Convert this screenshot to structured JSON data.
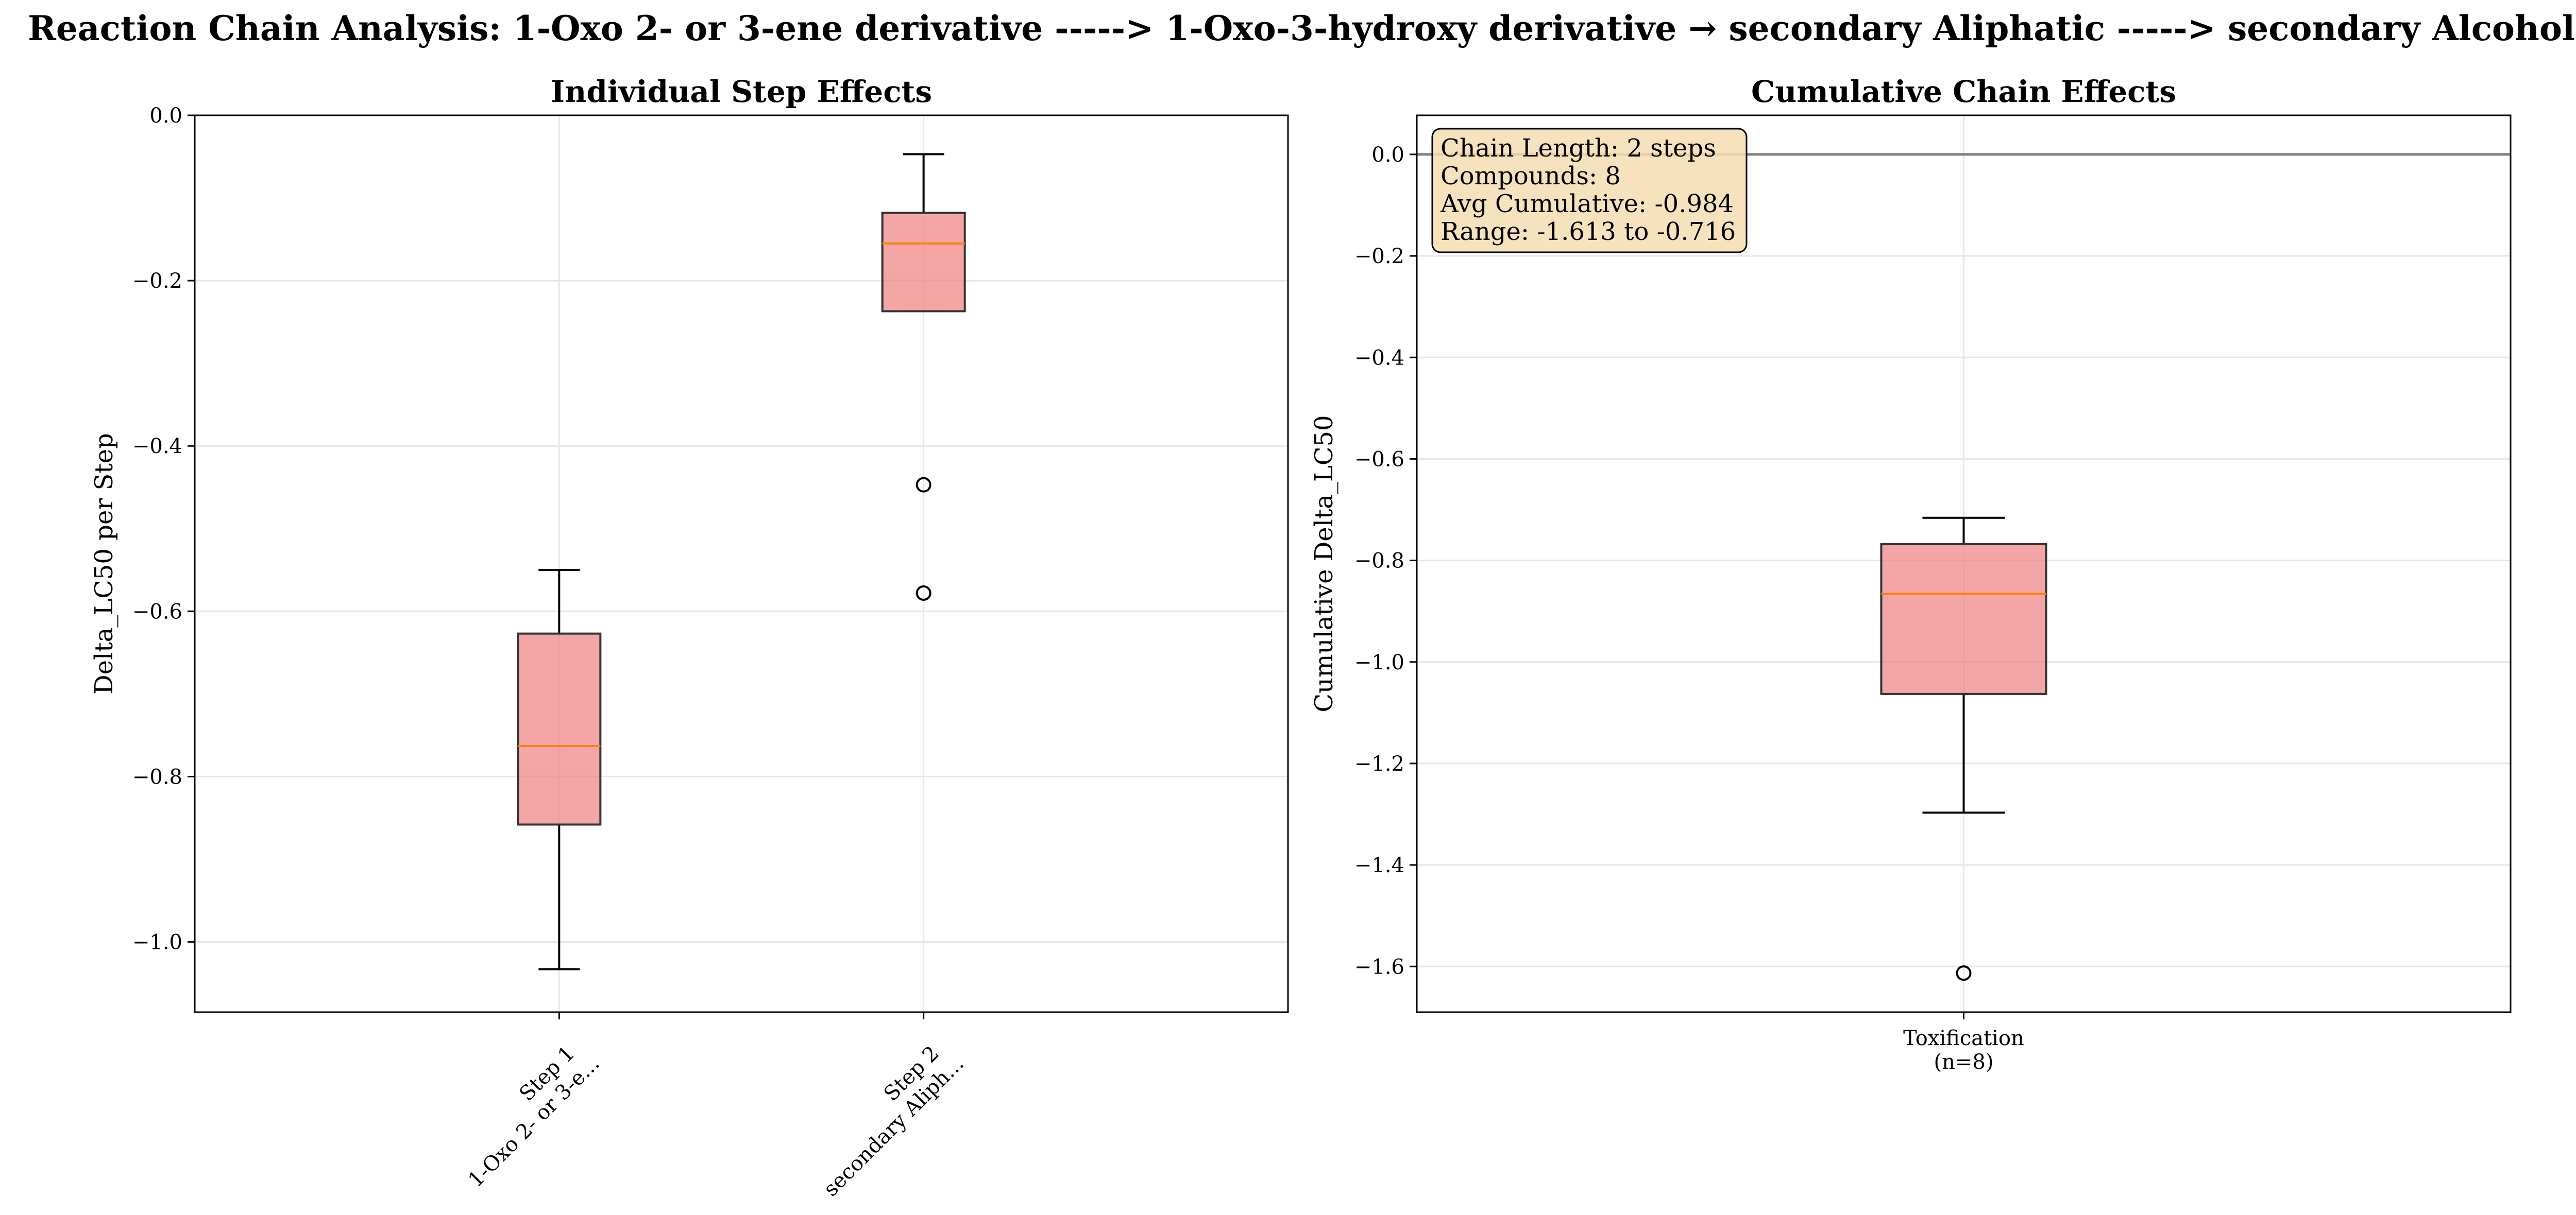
{
  "suptitle": "Reaction Chain Analysis: 1-Oxo 2- or 3-ene derivative -----> 1-Oxo-3-hydroxy derivative → secondary Aliphatic -----> secondary Alcohol",
  "colors": {
    "box_fill": "#f08080",
    "median": "#ff7f0e",
    "grid": "#e6e6e6",
    "zero_line": "#808080",
    "info_bg": "#f5deb3"
  },
  "chart_data": [
    {
      "type": "box",
      "title": "Individual Step Effects",
      "xlabel": "",
      "ylabel": "Delta_LC50 per Step",
      "ylim": [
        -1.085,
        0.0
      ],
      "yticks": [
        0.0,
        -0.2,
        -0.4,
        -0.6,
        -0.8,
        -1.0
      ],
      "ytick_labels": [
        "0.0",
        "−0.2",
        "−0.4",
        "−0.6",
        "−0.8",
        "−1.0"
      ],
      "grid": true,
      "categories": [
        {
          "line1": "Step 1",
          "line2": "1-Oxo 2- or 3-e..."
        },
        {
          "line1": "Step 2",
          "line2": "secondary Aliph..."
        }
      ],
      "boxes": [
        {
          "whislo": -1.033,
          "q1": -0.858,
          "med": -0.763,
          "q3": -0.627,
          "whishi": -0.55,
          "fliers": []
        },
        {
          "whislo": -0.237,
          "q1": -0.237,
          "med": -0.155,
          "q3": -0.118,
          "whishi": -0.047,
          "fliers": [
            -0.447,
            -0.578
          ]
        }
      ]
    },
    {
      "type": "box",
      "title": "Cumulative Chain Effects",
      "xlabel": "",
      "ylabel": "Cumulative Delta_LC50",
      "ylim": [
        -1.69,
        0.077
      ],
      "yticks": [
        0.0,
        -0.2,
        -0.4,
        -0.6,
        -0.8,
        -1.0,
        -1.2,
        -1.4,
        -1.6
      ],
      "ytick_labels": [
        "0.0",
        "−0.2",
        "−0.4",
        "−0.6",
        "−0.8",
        "−1.0",
        "−1.2",
        "−1.4",
        "−1.6"
      ],
      "grid": true,
      "reference_line": 0.0,
      "categories": [
        {
          "line1": "Toxification",
          "line2": "(n=8)"
        }
      ],
      "boxes": [
        {
          "whislo": -1.297,
          "q1": -1.063,
          "med": -0.866,
          "q3": -0.768,
          "whishi": -0.716,
          "fliers": [
            -1.613
          ]
        }
      ],
      "info_box": {
        "placement": "top-left",
        "lines": [
          "Chain Length: 2 steps",
          "Compounds: 8",
          "Avg Cumulative: -0.984",
          "Range: -1.613 to -0.716"
        ]
      }
    }
  ]
}
